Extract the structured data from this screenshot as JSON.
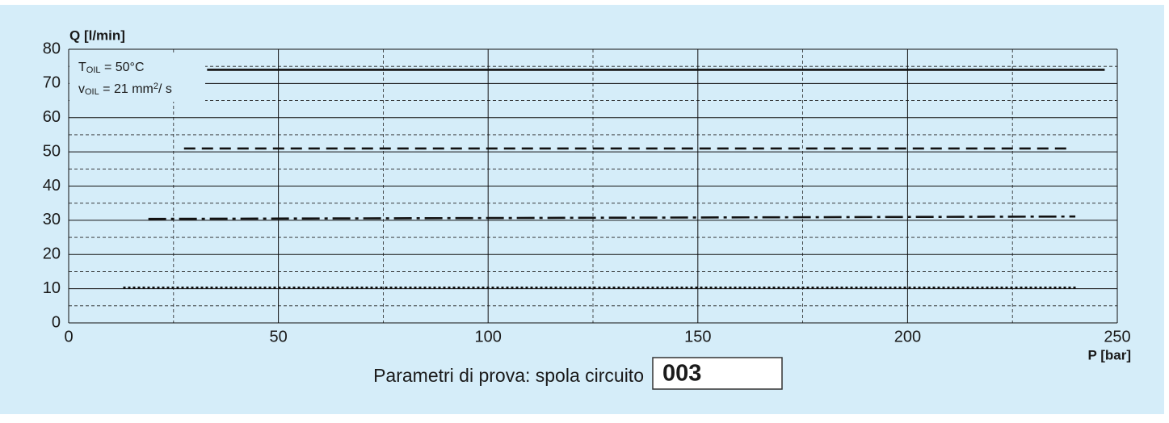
{
  "chart_data": {
    "type": "line",
    "y_label": "Q [l/min]",
    "x_label": "P [bar]",
    "xlim": [
      0,
      250
    ],
    "xticks": [
      0,
      50,
      100,
      150,
      200,
      250
    ],
    "xminor_ticks": [
      25,
      75,
      125,
      175,
      225
    ],
    "ylim": [
      0,
      80
    ],
    "yticks": [
      0,
      10,
      20,
      30,
      40,
      50,
      60,
      70,
      80
    ],
    "yminor_ticks": [
      5,
      15,
      25,
      35,
      45,
      55,
      65,
      75
    ],
    "grid": true,
    "series": [
      {
        "color": "#111111",
        "dash": "solid",
        "x": [
          33,
          247
        ],
        "values": [
          74,
          74
        ]
      },
      {
        "color": "#111111",
        "dash": "dashed",
        "x": [
          27.5,
          239
        ],
        "values": [
          51,
          51
        ]
      },
      {
        "color": "#111111",
        "dash": "dashdot",
        "x": [
          19,
          240
        ],
        "values": [
          30.4,
          31.1
        ]
      },
      {
        "color": "#111111",
        "dash": "dotted",
        "x": [
          13,
          240.5
        ],
        "values": [
          10.3,
          10.3
        ]
      }
    ],
    "annotations": [
      {
        "parts": [
          {
            "text": "T"
          },
          {
            "text": "OIL",
            "script": "sub"
          },
          {
            "text": " = 50°C"
          }
        ]
      },
      {
        "parts": [
          {
            "text": "v"
          },
          {
            "text": "OIL",
            "script": "sub"
          },
          {
            "text": " = 21 mm"
          },
          {
            "text": "2",
            "script": "super"
          },
          {
            "text": "/ s"
          }
        ]
      }
    ],
    "footer": {
      "text": "Parametri di prova: spola circuito",
      "code": "003"
    }
  }
}
